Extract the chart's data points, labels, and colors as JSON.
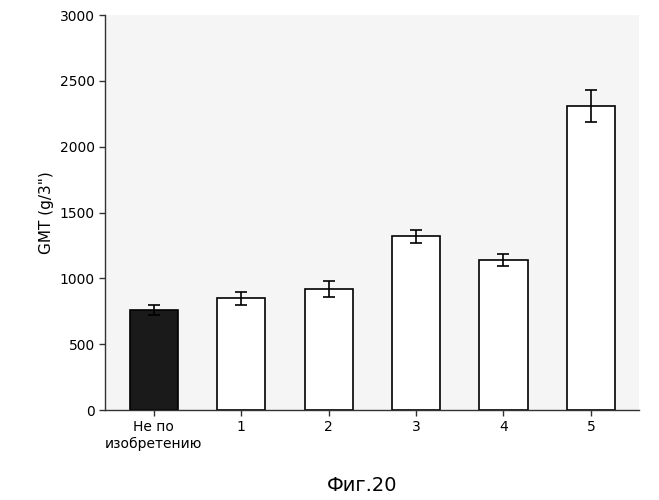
{
  "categories": [
    "Не по\nизобретению",
    "1",
    "2",
    "3",
    "4",
    "5"
  ],
  "values": [
    760,
    850,
    920,
    1320,
    1140,
    2310
  ],
  "errors": [
    40,
    50,
    60,
    50,
    45,
    120
  ],
  "bar_colors": [
    "#1a1a1a",
    "#ffffff",
    "#ffffff",
    "#ffffff",
    "#ffffff",
    "#ffffff"
  ],
  "bar_edgecolors": [
    "#000000",
    "#000000",
    "#000000",
    "#000000",
    "#000000",
    "#000000"
  ],
  "ylabel": "GMT (g/3\")",
  "xlabel": "Фиг.20",
  "ylim": [
    0,
    3000
  ],
  "yticks": [
    0,
    500,
    1000,
    1500,
    2000,
    2500,
    3000
  ],
  "title": "",
  "bar_width": 0.55,
  "figsize": [
    6.59,
    5.0
  ],
  "dpi": 100
}
